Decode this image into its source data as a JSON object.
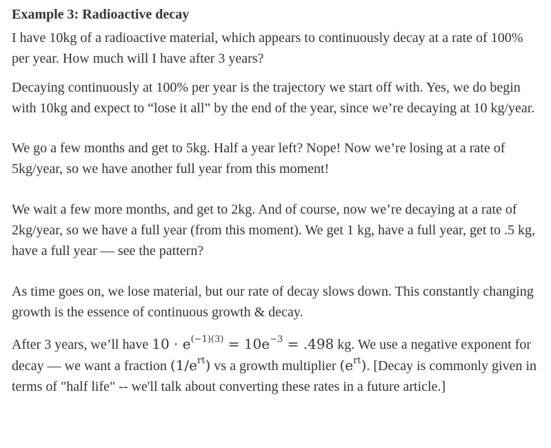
{
  "heading": "Example 3: Radioactive decay",
  "p1": "I have 10kg of a radioactive material, which appears to continuously decay at a rate of 100% per year. How much will I have after 3 years?",
  "p2": "Decaying continuously at 100% per year is the trajectory we start off with. Yes, we do begin with 10kg and expect to “lose it all” by the end of the year, since we’re decaying at 10 kg/year.",
  "p3": "We go a few months and get to 5kg. Half a year left? Nope! Now we’re losing at a rate of 5kg/year, so we have another full year from this moment!",
  "p4": "We wait a few more months, and get to 2kg. And of course, now we’re decaying at a rate of 2kg/year, so we have a full year (from this moment). We get 1 kg, have a full year, get to .5 kg, have a full year — see the pattern?",
  "p5": "As time goes on, we lose material, but our rate of decay slows down. This constantly changing growth is the essence of continuous growth & decay.",
  "p6": {
    "t1": "After 3 years, we’ll have ",
    "m1_base": "10 · e",
    "m1_exp": "(−1)(3)",
    "m1_eq": " = 10e",
    "m1_exp2": "−3",
    "m1_eq2": " = .498",
    "t2": " kg. We use a negative exponent for decay — we want a fraction ",
    "m2_open": "(1/e",
    "m2_exp": "rt",
    "m2_close": ")",
    "t3": " vs a growth multiplier ",
    "m3_open": "(e",
    "m3_exp": "rt",
    "m3_close": ")",
    "t4": ". [Decay is commonly given in terms of \"half life\" -- we'll talk about converting these rates in a future article.]"
  }
}
